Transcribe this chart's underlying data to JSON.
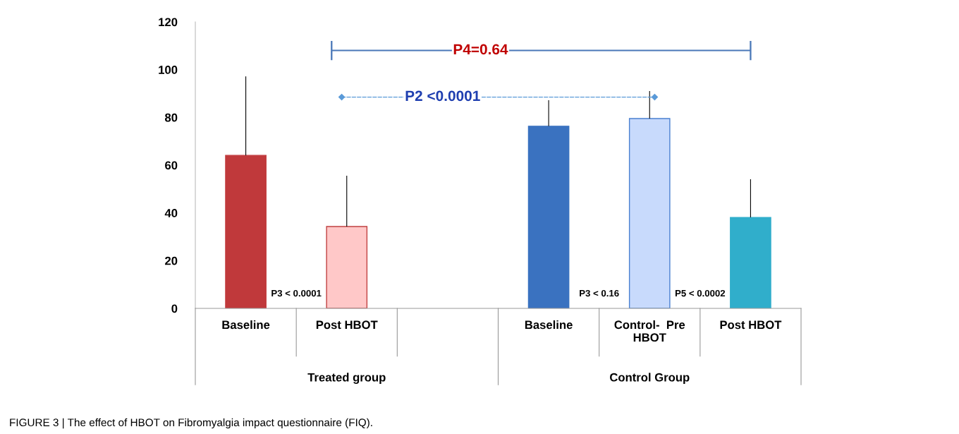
{
  "chart_data": {
    "type": "bar",
    "categories": [
      "Baseline",
      "Post HBOT",
      null,
      "Baseline",
      "Control-  Pre\nHBOT",
      "Post HBOT"
    ],
    "values": [
      64.1,
      34.3,
      null,
      76.3,
      79.5,
      38.1
    ],
    "colors": [
      "#c0393b",
      "#ffc8c8",
      "#ffffff",
      "#3a72c0",
      "#c8dafc",
      "#30aecb"
    ],
    "errors": [
      [
        64.1,
        97.2
      ],
      [
        34.3,
        55.6
      ],
      null,
      [
        76.3,
        87.2
      ],
      [
        79.5,
        91.0
      ],
      [
        38.1,
        54.1
      ]
    ],
    "ylim": [
      0,
      120
    ],
    "yticks": [
      0,
      20,
      40,
      60,
      80,
      100,
      120
    ],
    "grid": false,
    "legend": false,
    "annotations": [
      "Treated group",
      "Control Group",
      "P4=0.64",
      "P2 <0.0001",
      "P3 < 0.0001",
      "P3 < 0.16",
      "P5 < 0.0002",
      "FIGURE 3 | The effect of HBOT on Fibromyalgia impact questionnaire (FIQ)."
    ]
  }
}
